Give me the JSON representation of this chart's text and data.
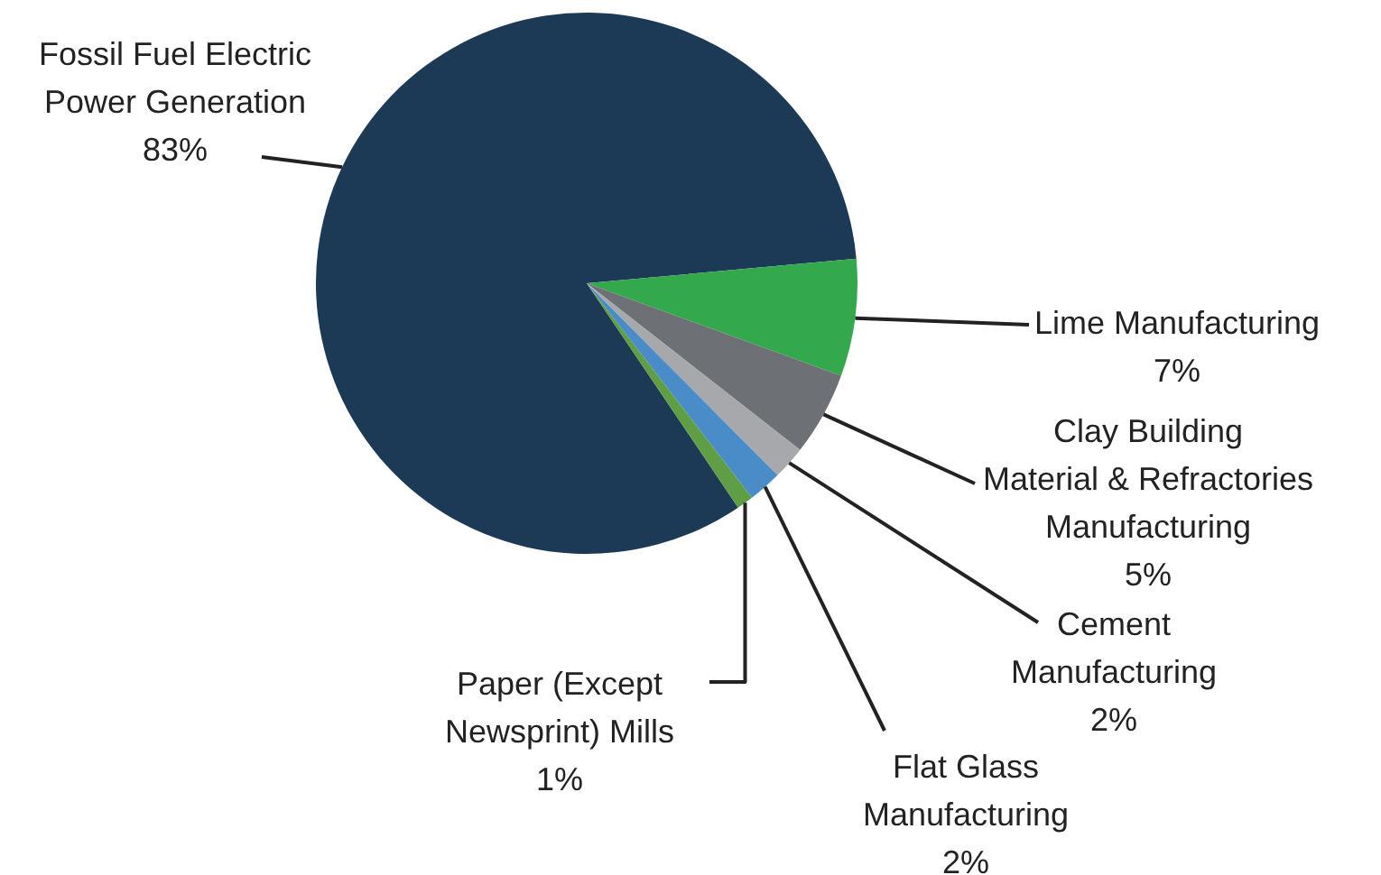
{
  "chart_data": {
    "type": "pie",
    "categories": [
      "Fossil Fuel Electric Power Generation",
      "Lime Manufacturing",
      "Clay Building Material & Refractories Manufacturing",
      "Cement Manufacturing",
      "Flat Glass Manufacturing",
      "Paper (Except Newsprint) Mills"
    ],
    "values": [
      83,
      7,
      5,
      2,
      2,
      1
    ],
    "colors": [
      "#1c3a56",
      "#34a84c",
      "#6d7074",
      "#a6a8ab",
      "#4a8cc8",
      "#5f9e44"
    ],
    "value_labels": [
      "83%",
      "7%",
      "5%",
      "2%",
      "2%",
      "1%"
    ],
    "legend": false
  }
}
